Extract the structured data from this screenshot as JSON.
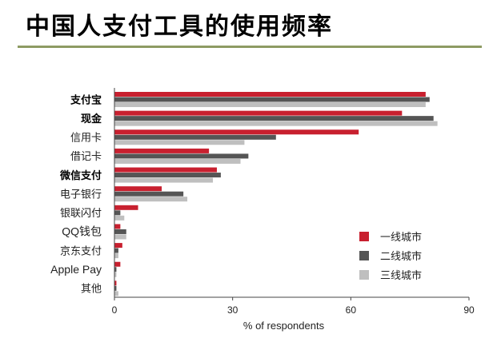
{
  "title": "中国人支付工具的使用频率",
  "chart_data": {
    "type": "bar",
    "orientation": "horizontal",
    "title": "中国人支付工具的使用频率",
    "xlabel": "% of respondents",
    "ylabel": "",
    "xlim": [
      0,
      90
    ],
    "xticks": [
      0,
      30,
      60,
      90
    ],
    "grid": false,
    "legend_position": "bottom-right",
    "categories": [
      "支付宝",
      "现金",
      "信用卡",
      "借记卡",
      "微信支付",
      "电子银行",
      "银联闪付",
      "QQ钱包",
      "京东支付",
      "Apple Pay",
      "其他"
    ],
    "bold_categories": [
      "支付宝",
      "现金",
      "微信支付"
    ],
    "series": [
      {
        "name": "一线城市",
        "color": "#c8202f",
        "values": [
          79,
          73,
          62,
          24,
          26,
          12,
          6,
          1.5,
          2,
          1.5,
          0.5
        ]
      },
      {
        "name": "二线城市",
        "color": "#555555",
        "values": [
          80,
          81,
          41,
          34,
          27,
          17.5,
          1.5,
          3,
          1,
          0.5,
          0.5
        ]
      },
      {
        "name": "三线城市",
        "color": "#bfbfbf",
        "values": [
          79,
          82,
          33,
          32,
          25,
          18.5,
          2.5,
          3,
          1,
          0.5,
          1
        ]
      }
    ]
  }
}
